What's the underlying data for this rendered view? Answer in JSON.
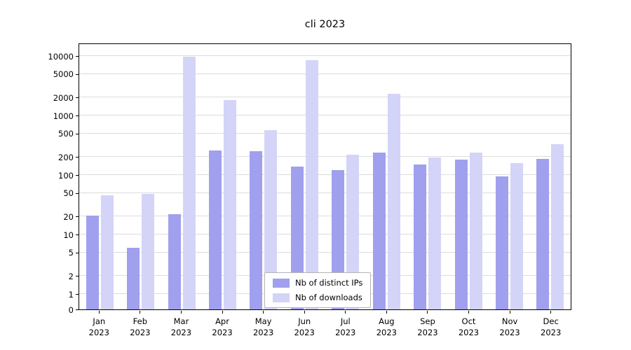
{
  "title": "cli 2023",
  "chart_data": {
    "type": "bar",
    "title": "cli 2023",
    "categories": [
      "Jan",
      "Feb",
      "Mar",
      "Apr",
      "May",
      "Jun",
      "Jul",
      "Aug",
      "Sep",
      "Oct",
      "Nov",
      "Dec"
    ],
    "year_label": "2023",
    "series": [
      {
        "name": "Nb of distinct IPs",
        "color": "#a0a0ee",
        "values": [
          21,
          6,
          22,
          260,
          250,
          140,
          120,
          240,
          150,
          180,
          95,
          185
        ]
      },
      {
        "name": "Nb of downloads",
        "color": "#d4d4f8",
        "values": [
          45,
          48,
          9800,
          1800,
          560,
          8500,
          220,
          2300,
          195,
          240,
          160,
          330
        ]
      }
    ],
    "yticks": [
      0,
      1,
      2,
      5,
      10,
      20,
      50,
      100,
      200,
      500,
      1000,
      2000,
      5000,
      10000
    ],
    "yscale": "symlog",
    "ylim": [
      0,
      14000
    ],
    "grid": "horizontal",
    "legend_position": "lower center"
  }
}
